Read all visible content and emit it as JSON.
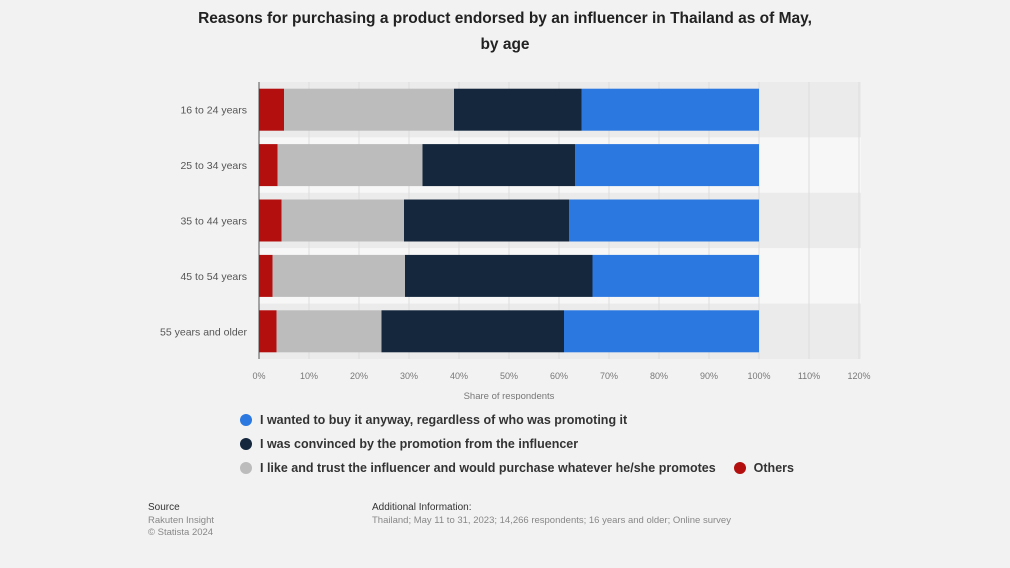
{
  "chart_data": {
    "type": "bar",
    "orientation": "horizontal",
    "stacked": true,
    "title": "Reasons for purchasing a product endorsed by an influencer in Thailand as of May, by age",
    "title_lines": [
      "Reasons for purchasing a product endorsed by an influencer in Thailand as of May,",
      "by age"
    ],
    "xlabel": "Share of respondents",
    "xlim": [
      0,
      120
    ],
    "x_ticks": [
      "0%",
      "10%",
      "20%",
      "30%",
      "40%",
      "50%",
      "60%",
      "70%",
      "80%",
      "90%",
      "100%",
      "110%",
      "120%"
    ],
    "categories": [
      "16 to 24 years",
      "25 to 34 years",
      "35 to 44 years",
      "45 to 54 years",
      "55 years and older"
    ],
    "series": [
      {
        "name": "Others",
        "color": "#b30f0f",
        "values": [
          5,
          3.7,
          4.5,
          2.7,
          3.5
        ]
      },
      {
        "name": "I like and trust the influencer and would purchase whatever he/she promotes",
        "color": "#bcbcbc",
        "values": [
          34,
          29,
          24.5,
          26.5,
          21
        ]
      },
      {
        "name": "I was convinced by the promotion from the influencer",
        "color": "#14273d",
        "values": [
          25.5,
          30.5,
          33,
          37.5,
          36.5
        ]
      },
      {
        "name": "I wanted to buy it anyway, regardless of who was promoting it",
        "color": "#2b78e0",
        "values": [
          35.5,
          36.8,
          38,
          33.3,
          39
        ]
      }
    ],
    "legend_order": [
      3,
      2,
      1,
      0
    ],
    "grid": true,
    "legend_position": "bottom"
  },
  "footer": {
    "source_heading": "Source",
    "source_lines": [
      "Rakuten Insight",
      "© Statista 2024"
    ],
    "info_heading": "Additional Information:",
    "info_text": "Thailand; May 11 to 31, 2023; 14,266 respondents; 16 years and older; Online survey"
  }
}
